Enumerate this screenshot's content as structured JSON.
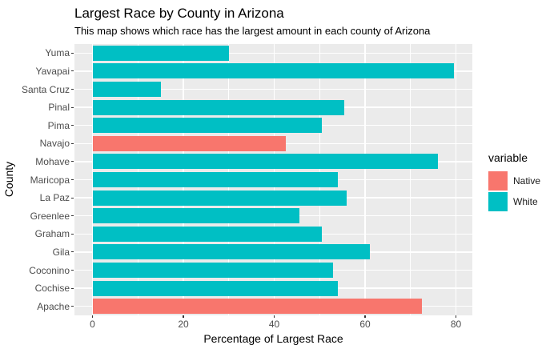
{
  "chart_data": {
    "type": "bar",
    "orientation": "horizontal",
    "title": "Largest Race by County in Arizona",
    "subtitle": "This map shows which race has the largest amount in each county of Arizona",
    "xlabel": "Percentage of Largest Race",
    "ylabel": "County",
    "legend_title": "variable",
    "legend_position": "right",
    "legend": [
      {
        "label": "Native",
        "color": "#F8766D"
      },
      {
        "label": "White",
        "color": "#00BFC4"
      }
    ],
    "categories": [
      "Yuma",
      "Yavapai",
      "Santa Cruz",
      "Pinal",
      "Pima",
      "Navajo",
      "Mohave",
      "Maricopa",
      "La Paz",
      "Greenlee",
      "Graham",
      "Gila",
      "Coconino",
      "Cochise",
      "Apache"
    ],
    "categories_order": "top-to-bottom",
    "values": [
      30,
      79.5,
      15,
      55.5,
      50.5,
      42.5,
      76,
      54,
      56,
      45.5,
      50.5,
      61,
      53,
      54,
      72.5
    ],
    "groups": [
      "White",
      "White",
      "White",
      "White",
      "White",
      "Native",
      "White",
      "White",
      "White",
      "White",
      "White",
      "White",
      "White",
      "White",
      "Native"
    ],
    "xlim": [
      0,
      80
    ],
    "x_ticks": [
      0,
      20,
      40,
      60,
      80
    ],
    "x_minor_gridlines": [
      10,
      30,
      50,
      70
    ],
    "grid": "on",
    "panel_background": "#EBEBEB",
    "gridline_color": "#FFFFFF",
    "tick_label_color": "#4D4D4D"
  }
}
